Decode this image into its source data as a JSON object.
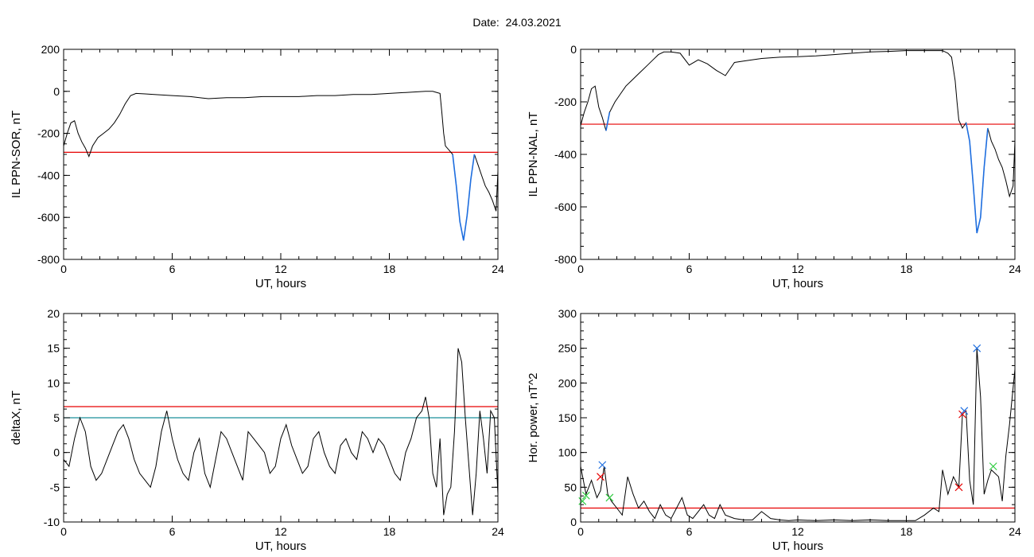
{
  "title": "Date:  24.03.2021",
  "colors": {
    "axis": "#000000",
    "trace": "#000000",
    "threshold": "#e60000",
    "cyan_line": "#1a8f9a",
    "highlight": "#1f6fe0",
    "green_marker": "#2ecc40",
    "red_marker": "#e60000",
    "blue_marker": "#1f6fe0"
  },
  "chart_data": [
    {
      "id": "p1",
      "type": "line",
      "ylabel": "IL PPN-SOR, nT",
      "xlabel": "UT, hours",
      "xlim": [
        0,
        24
      ],
      "ylim": [
        -800,
        200
      ],
      "xticks": [
        0,
        6,
        12,
        18,
        24
      ],
      "yticks": [
        -800,
        -600,
        -400,
        -200,
        0,
        200
      ],
      "series": [
        {
          "x": [
            0,
            0.2,
            0.4,
            0.6,
            0.8,
            1.0,
            1.2,
            1.4,
            1.6,
            1.9,
            2.2,
            2.5,
            2.8,
            3.1,
            3.4,
            3.7,
            4.0,
            4.5,
            5.0,
            6.0,
            7.0,
            8.0,
            9.0,
            10.0,
            11.0,
            12.0,
            13.0,
            14.0,
            15.0,
            16.0,
            17.0,
            18.0,
            19.0,
            20.0,
            20.4,
            20.6,
            20.8,
            20.9,
            21.0,
            21.1,
            21.3,
            21.5,
            21.7,
            21.9,
            22.1,
            22.3,
            22.5,
            22.7,
            22.9,
            23.1,
            23.3,
            23.5,
            23.7,
            23.9,
            24.0
          ],
          "y": [
            -260,
            -200,
            -150,
            -140,
            -200,
            -240,
            -270,
            -310,
            -260,
            -220,
            -200,
            -180,
            -150,
            -110,
            -60,
            -20,
            -10,
            -12,
            -15,
            -20,
            -25,
            -35,
            -30,
            -30,
            -25,
            -25,
            -25,
            -20,
            -20,
            -15,
            -15,
            -10,
            -5,
            0,
            0,
            -5,
            -10,
            -100,
            -200,
            -260,
            -280,
            -300,
            -450,
            -620,
            -710,
            -590,
            -420,
            -300,
            -350,
            -400,
            -450,
            -480,
            -520,
            -570,
            -380
          ]
        }
      ],
      "thresholds": [
        {
          "y": -290,
          "color": "#e60000"
        }
      ],
      "highlights": [
        {
          "x_range": [
            21.5,
            22.7
          ],
          "color": "#1f6fe0"
        }
      ],
      "markers": []
    },
    {
      "id": "p2",
      "type": "line",
      "ylabel": "IL PPN-NAL, nT",
      "xlabel": "UT, hours",
      "xlim": [
        0,
        24
      ],
      "ylim": [
        -800,
        0
      ],
      "xticks": [
        0,
        6,
        12,
        18,
        24
      ],
      "yticks": [
        -800,
        -600,
        -400,
        -200,
        0
      ],
      "series": [
        {
          "x": [
            0,
            0.2,
            0.4,
            0.6,
            0.8,
            1.0,
            1.2,
            1.4,
            1.6,
            1.9,
            2.2,
            2.5,
            2.8,
            3.1,
            3.4,
            3.7,
            4.0,
            4.3,
            4.6,
            5.0,
            5.5,
            6.0,
            6.5,
            7.0,
            7.5,
            8.0,
            8.5,
            9.0,
            10.0,
            11.0,
            12.0,
            13.0,
            14.0,
            15.0,
            16.0,
            17.0,
            18.0,
            19.0,
            20.0,
            20.3,
            20.5,
            20.7,
            20.8,
            20.9,
            21.1,
            21.3,
            21.5,
            21.7,
            21.9,
            22.1,
            22.3,
            22.5,
            22.7,
            22.9,
            23.1,
            23.3,
            23.5,
            23.7,
            23.9,
            24.0
          ],
          "y": [
            -290,
            -240,
            -200,
            -150,
            -140,
            -220,
            -260,
            -310,
            -240,
            -200,
            -170,
            -140,
            -120,
            -100,
            -80,
            -60,
            -40,
            -20,
            -10,
            -10,
            -15,
            -60,
            -40,
            -55,
            -80,
            -100,
            -50,
            -45,
            -35,
            -30,
            -28,
            -25,
            -20,
            -15,
            -10,
            -8,
            -5,
            -5,
            -5,
            -15,
            -30,
            -120,
            -200,
            -270,
            -300,
            -280,
            -350,
            -520,
            -700,
            -640,
            -450,
            -300,
            -350,
            -380,
            -420,
            -450,
            -500,
            -560,
            -520,
            -350
          ]
        }
      ],
      "thresholds": [
        {
          "y": -285,
          "color": "#e60000"
        }
      ],
      "highlights": [
        {
          "x_range": [
            21.3,
            22.6
          ],
          "color": "#1f6fe0"
        },
        {
          "x_range": [
            1.3,
            1.6
          ],
          "color": "#1f6fe0"
        },
        {
          "x_range": [
            0,
            0.15
          ],
          "color": "#1f6fe0"
        }
      ],
      "markers": []
    },
    {
      "id": "p3",
      "type": "line",
      "ylabel": "deltaX, nT",
      "xlabel": "UT, hours",
      "xlim": [
        0,
        24
      ],
      "ylim": [
        -10,
        20
      ],
      "xticks": [
        0,
        6,
        12,
        18,
        24
      ],
      "yticks": [
        -10,
        -5,
        0,
        5,
        10,
        15,
        20
      ],
      "series": [
        {
          "x": [
            0,
            0.3,
            0.6,
            0.9,
            1.2,
            1.5,
            1.8,
            2.1,
            2.4,
            2.7,
            3.0,
            3.3,
            3.6,
            3.9,
            4.2,
            4.5,
            4.8,
            5.1,
            5.4,
            5.7,
            6.0,
            6.3,
            6.6,
            6.9,
            7.2,
            7.5,
            7.8,
            8.1,
            8.4,
            8.7,
            9.0,
            9.3,
            9.6,
            9.9,
            10.2,
            10.5,
            10.8,
            11.1,
            11.4,
            11.7,
            12.0,
            12.3,
            12.6,
            12.9,
            13.2,
            13.5,
            13.8,
            14.1,
            14.4,
            14.7,
            15.0,
            15.3,
            15.6,
            15.9,
            16.2,
            16.5,
            16.8,
            17.1,
            17.4,
            17.7,
            18.0,
            18.3,
            18.6,
            18.9,
            19.2,
            19.5,
            19.8,
            20.0,
            20.2,
            20.4,
            20.6,
            20.8,
            21.0,
            21.2,
            21.4,
            21.6,
            21.8,
            22.0,
            22.2,
            22.4,
            22.6,
            22.8,
            23.0,
            23.2,
            23.4,
            23.6,
            23.8,
            24.0
          ],
          "y": [
            -1,
            -2,
            2,
            5,
            3,
            -2,
            -4,
            -3,
            -1,
            1,
            3,
            4,
            2,
            -1,
            -3,
            -4,
            -5,
            -2,
            3,
            6,
            2,
            -1,
            -3,
            -4,
            0,
            2,
            -3,
            -5,
            -1,
            3,
            2,
            0,
            -2,
            -4,
            3,
            2,
            1,
            0,
            -3,
            -2,
            2,
            4,
            1,
            -1,
            -3,
            -2,
            2,
            3,
            0,
            -2,
            -3,
            1,
            2,
            0,
            -1,
            3,
            2,
            0,
            2,
            1,
            -1,
            -3,
            -4,
            0,
            2,
            5,
            6,
            8,
            5,
            -3,
            -5,
            2,
            -9,
            -6,
            -5,
            3,
            15,
            13,
            5,
            -2,
            -9,
            -3,
            6,
            2,
            -3,
            6,
            5,
            -6
          ]
        }
      ],
      "thresholds": [
        {
          "y": 6.6,
          "color": "#e60000"
        },
        {
          "y": 5.0,
          "color": "#1a8f9a"
        }
      ],
      "highlights": [],
      "markers": []
    },
    {
      "id": "p4",
      "type": "line",
      "ylabel": "Hor. power, nT^2",
      "xlabel": "UT, hours",
      "xlim": [
        0,
        24
      ],
      "ylim": [
        0,
        300
      ],
      "xticks": [
        0,
        6,
        12,
        18,
        24
      ],
      "yticks": [
        0,
        50,
        100,
        150,
        200,
        250,
        300
      ],
      "series": [
        {
          "x": [
            0,
            0.3,
            0.6,
            0.9,
            1.1,
            1.3,
            1.5,
            1.7,
            2.0,
            2.3,
            2.6,
            2.9,
            3.2,
            3.5,
            3.8,
            4.1,
            4.4,
            4.7,
            5.0,
            5.3,
            5.6,
            5.9,
            6.2,
            6.5,
            6.8,
            7.1,
            7.4,
            7.7,
            8.0,
            8.5,
            9.0,
            9.5,
            10.0,
            10.5,
            11.0,
            11.5,
            12.0,
            13.0,
            14.0,
            15.0,
            16.0,
            17.0,
            18.0,
            18.5,
            19.0,
            19.5,
            19.8,
            20.0,
            20.3,
            20.6,
            20.9,
            21.1,
            21.3,
            21.5,
            21.7,
            21.9,
            22.1,
            22.3,
            22.5,
            22.7,
            22.9,
            23.1,
            23.3,
            23.5,
            23.7,
            24.0
          ],
          "y": [
            80,
            40,
            60,
            35,
            45,
            80,
            40,
            30,
            20,
            10,
            65,
            40,
            20,
            30,
            15,
            5,
            25,
            10,
            5,
            20,
            35,
            10,
            5,
            15,
            25,
            10,
            5,
            25,
            10,
            5,
            3,
            3,
            15,
            5,
            3,
            2,
            3,
            2,
            3,
            2,
            3,
            2,
            2,
            2,
            10,
            20,
            15,
            75,
            40,
            65,
            50,
            155,
            160,
            60,
            25,
            250,
            180,
            40,
            60,
            75,
            70,
            65,
            30,
            95,
            140,
            220
          ]
        }
      ],
      "thresholds": [
        {
          "y": 20,
          "color": "#e60000"
        }
      ],
      "highlights": [],
      "markers": [
        {
          "x": 0.1,
          "y": 30,
          "color": "#2ecc40"
        },
        {
          "x": 0.3,
          "y": 38,
          "color": "#2ecc40"
        },
        {
          "x": 1.1,
          "y": 65,
          "color": "#e60000"
        },
        {
          "x": 1.2,
          "y": 82,
          "color": "#1f6fe0"
        },
        {
          "x": 1.6,
          "y": 35,
          "color": "#2ecc40"
        },
        {
          "x": 20.9,
          "y": 50,
          "color": "#e60000"
        },
        {
          "x": 21.1,
          "y": 155,
          "color": "#e60000"
        },
        {
          "x": 21.2,
          "y": 160,
          "color": "#1f6fe0"
        },
        {
          "x": 21.9,
          "y": 250,
          "color": "#1f6fe0"
        },
        {
          "x": 22.8,
          "y": 80,
          "color": "#2ecc40"
        }
      ]
    }
  ]
}
